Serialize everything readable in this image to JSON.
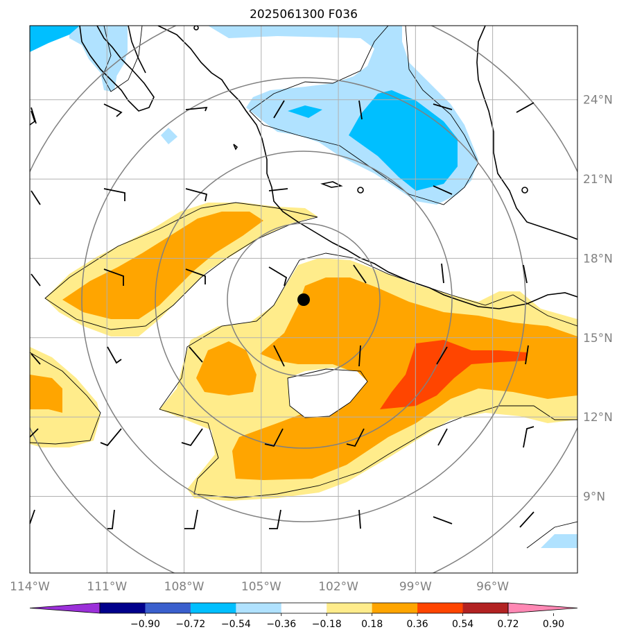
{
  "title": "2025061300 F036",
  "map": {
    "lon_range": [
      -114,
      -92.7
    ],
    "lat_range": [
      6.1,
      26.8
    ],
    "gridlines": true,
    "lat_ticks": [
      {
        "value": 24,
        "label": "24°N"
      },
      {
        "value": 21,
        "label": "21°N"
      },
      {
        "value": 18,
        "label": "18°N"
      },
      {
        "value": 15,
        "label": "15°N"
      },
      {
        "value": 12,
        "label": "12°N"
      },
      {
        "value": 9,
        "label": "9°N"
      }
    ],
    "lon_ticks": [
      {
        "value": -114,
        "label": "114°W"
      },
      {
        "value": -111,
        "label": "111°W"
      },
      {
        "value": -108,
        "label": "108°W"
      },
      {
        "value": -105,
        "label": "105°W"
      },
      {
        "value": -102,
        "label": "102°W"
      },
      {
        "value": -99,
        "label": "99°W"
      },
      {
        "value": -96,
        "label": "96°W"
      }
    ],
    "center_marker": {
      "lon": -104.1,
      "lat": 16.0,
      "color": "#000000"
    },
    "range_rings_km": [
      200,
      400,
      600,
      800
    ],
    "gridline_color": "#b0b0b0",
    "ring_color": "#808080",
    "coast_color": "#000000"
  },
  "colorbar": {
    "tick_labels": [
      "−0.90",
      "−0.72",
      "−0.54",
      "−0.36",
      "−0.18",
      "0.18",
      "0.36",
      "0.54",
      "0.72",
      "0.90"
    ],
    "colors": [
      "#9b30d9",
      "#00008b",
      "#3a5fcd",
      "#00bfff",
      "#b0e2ff",
      "#ffffff",
      "#ffec8b",
      "#ffa500",
      "#ff4500",
      "#b22222",
      "#ff88b4"
    ]
  }
}
